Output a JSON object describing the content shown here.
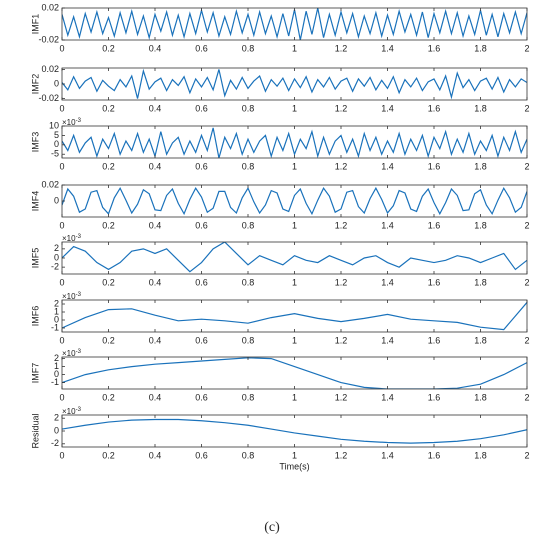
{
  "chart_data": [
    {
      "type": "line",
      "ylabel": "IMF1",
      "color": "#1a72bb",
      "xlim": [
        0,
        2
      ],
      "ylim": [
        -0.02,
        0.02
      ],
      "xticks": [
        0,
        0.2,
        0.4,
        0.6,
        0.8,
        1,
        1.2,
        1.4,
        1.6,
        1.8,
        2
      ],
      "yticks": [
        -0.02,
        0.02
      ],
      "x": [
        0,
        0.025,
        0.05,
        0.075,
        0.1,
        0.125,
        0.15,
        0.175,
        0.2,
        0.225,
        0.25,
        0.275,
        0.3,
        0.325,
        0.35,
        0.375,
        0.4,
        0.425,
        0.45,
        0.475,
        0.5,
        0.525,
        0.55,
        0.575,
        0.6,
        0.625,
        0.65,
        0.675,
        0.7,
        0.725,
        0.75,
        0.775,
        0.8,
        0.825,
        0.85,
        0.875,
        0.9,
        0.925,
        0.95,
        0.975,
        1,
        1.025,
        1.05,
        1.075,
        1.1,
        1.125,
        1.15,
        1.175,
        1.2,
        1.225,
        1.25,
        1.275,
        1.3,
        1.325,
        1.35,
        1.375,
        1.4,
        1.425,
        1.45,
        1.475,
        1.5,
        1.525,
        1.55,
        1.575,
        1.6,
        1.625,
        1.65,
        1.675,
        1.7,
        1.725,
        1.75,
        1.775,
        1.8,
        1.825,
        1.85,
        1.875,
        1.9,
        1.925,
        1.95,
        1.975,
        2
      ],
      "values": [
        0.012,
        -0.014,
        0.009,
        -0.016,
        0.013,
        -0.01,
        0.015,
        -0.012,
        0.008,
        -0.015,
        0.014,
        -0.011,
        0.016,
        -0.013,
        0.01,
        -0.017,
        0.012,
        -0.009,
        0.015,
        -0.014,
        0.011,
        -0.016,
        0.013,
        -0.012,
        0.017,
        -0.01,
        0.014,
        -0.015,
        0.009,
        -0.013,
        0.016,
        -0.011,
        0.012,
        -0.014,
        0.015,
        -0.012,
        0.01,
        -0.016,
        0.013,
        -0.015,
        0.018,
        -0.02,
        0.016,
        -0.013,
        0.02,
        -0.017,
        0.012,
        -0.014,
        0.015,
        -0.011,
        0.013,
        -0.016,
        0.01,
        -0.012,
        0.014,
        -0.015,
        0.011,
        -0.013,
        0.016,
        -0.01,
        0.012,
        -0.014,
        0.015,
        -0.017,
        0.013,
        -0.011,
        0.016,
        -0.012,
        0.014,
        -0.015,
        0.01,
        -0.013,
        0.017,
        -0.014,
        0.012,
        -0.016,
        0.013,
        -0.011,
        0.015,
        -0.012,
        0.014
      ]
    },
    {
      "type": "line",
      "ylabel": "IMF2",
      "color": "#1a72bb",
      "xlim": [
        0,
        2
      ],
      "ylim": [
        -0.022,
        0.022
      ],
      "xticks": [
        0,
        0.2,
        0.4,
        0.6,
        0.8,
        1,
        1.2,
        1.4,
        1.6,
        1.8,
        2
      ],
      "yticks": [
        -0.02,
        0,
        0.02
      ],
      "x": [
        0,
        0.025,
        0.05,
        0.075,
        0.1,
        0.125,
        0.15,
        0.175,
        0.2,
        0.225,
        0.25,
        0.275,
        0.3,
        0.325,
        0.35,
        0.375,
        0.4,
        0.425,
        0.45,
        0.475,
        0.5,
        0.525,
        0.55,
        0.575,
        0.6,
        0.625,
        0.65,
        0.675,
        0.7,
        0.725,
        0.75,
        0.775,
        0.8,
        0.825,
        0.85,
        0.875,
        0.9,
        0.925,
        0.95,
        0.975,
        1,
        1.025,
        1.05,
        1.075,
        1.1,
        1.125,
        1.15,
        1.175,
        1.2,
        1.225,
        1.25,
        1.275,
        1.3,
        1.325,
        1.35,
        1.375,
        1.4,
        1.425,
        1.45,
        1.475,
        1.5,
        1.525,
        1.55,
        1.575,
        1.6,
        1.625,
        1.65,
        1.675,
        1.7,
        1.725,
        1.75,
        1.775,
        1.8,
        1.825,
        1.85,
        1.875,
        1.9,
        1.925,
        1.95,
        1.975,
        2
      ],
      "values": [
        0.002,
        -0.008,
        0.01,
        -0.006,
        0.004,
        0.009,
        -0.01,
        0.005,
        -0.003,
        -0.009,
        0.006,
        -0.004,
        0.011,
        -0.02,
        0.018,
        -0.007,
        0.003,
        0.008,
        -0.009,
        0.006,
        -0.002,
        0.01,
        -0.012,
        0.007,
        -0.004,
        0.009,
        -0.008,
        0.02,
        -0.016,
        0.005,
        -0.007,
        0.009,
        -0.006,
        0.004,
        0.011,
        -0.01,
        0.006,
        -0.003,
        0.008,
        -0.009,
        0.007,
        -0.005,
        0.01,
        -0.011,
        0.006,
        -0.004,
        0.009,
        -0.007,
        0.004,
        0.008,
        -0.01,
        0.007,
        -0.003,
        0.009,
        -0.008,
        0.005,
        -0.006,
        0.01,
        -0.012,
        0.006,
        -0.004,
        0.008,
        -0.009,
        0.003,
        0.007,
        -0.008,
        0.011,
        -0.018,
        0.015,
        -0.005,
        0.006,
        -0.009,
        0.004,
        0.008,
        -0.007,
        0.009,
        -0.011,
        0.006,
        -0.004,
        0.007,
        0.002
      ]
    },
    {
      "type": "line",
      "ylabel": "IMF3",
      "multiplier": "×10",
      "exponent": "-3",
      "color": "#1a72bb",
      "xlim": [
        0,
        2
      ],
      "ylim": [
        -7,
        10
      ],
      "xticks": [
        0,
        0.2,
        0.4,
        0.6,
        0.8,
        1,
        1.2,
        1.4,
        1.6,
        1.8,
        2
      ],
      "yticks": [
        -5,
        0,
        5,
        10
      ],
      "x": [
        0,
        0.025,
        0.05,
        0.075,
        0.1,
        0.125,
        0.15,
        0.175,
        0.2,
        0.225,
        0.25,
        0.275,
        0.3,
        0.325,
        0.35,
        0.375,
        0.4,
        0.425,
        0.45,
        0.475,
        0.5,
        0.525,
        0.55,
        0.575,
        0.6,
        0.625,
        0.65,
        0.675,
        0.7,
        0.725,
        0.75,
        0.775,
        0.8,
        0.825,
        0.85,
        0.875,
        0.9,
        0.925,
        0.95,
        0.975,
        1,
        1.025,
        1.05,
        1.075,
        1.1,
        1.125,
        1.15,
        1.175,
        1.2,
        1.225,
        1.25,
        1.275,
        1.3,
        1.325,
        1.35,
        1.375,
        1.4,
        1.425,
        1.45,
        1.475,
        1.5,
        1.525,
        1.55,
        1.575,
        1.6,
        1.625,
        1.65,
        1.675,
        1.7,
        1.725,
        1.75,
        1.775,
        1.8,
        1.825,
        1.85,
        1.875,
        1.9,
        1.925,
        1.95,
        1.975,
        2
      ],
      "values": [
        2,
        -3,
        5,
        -4,
        1,
        4,
        -6,
        3,
        -2,
        6,
        -5,
        2,
        -3,
        6,
        -4,
        3,
        -6,
        7,
        -5,
        1,
        4,
        -5,
        2,
        -4,
        5,
        -3,
        9,
        -7,
        4,
        -2,
        6,
        -5,
        3,
        -4,
        2,
        5,
        -6,
        4,
        -3,
        6,
        -5,
        3,
        -2,
        7,
        -6,
        4,
        -5,
        2,
        5,
        -4,
        3,
        -6,
        6,
        -3,
        4,
        -5,
        2,
        -4,
        6,
        -5,
        3,
        -3,
        5,
        -6,
        4,
        -2,
        7,
        -5,
        3,
        -4,
        6,
        -5,
        2,
        -3,
        5,
        -6,
        4,
        -3,
        7,
        -4,
        3
      ]
    },
    {
      "type": "line",
      "ylabel": "IMF4",
      "color": "#1a72bb",
      "xlim": [
        0,
        2
      ],
      "ylim": [
        -0.02,
        0.02
      ],
      "xticks": [
        0,
        0.2,
        0.4,
        0.6,
        0.8,
        1,
        1.2,
        1.4,
        1.6,
        1.8,
        2
      ],
      "yticks": [
        0,
        0.02
      ],
      "x": [
        0,
        0.025,
        0.05,
        0.075,
        0.1,
        0.125,
        0.15,
        0.175,
        0.2,
        0.225,
        0.25,
        0.275,
        0.3,
        0.325,
        0.35,
        0.375,
        0.4,
        0.425,
        0.45,
        0.475,
        0.5,
        0.525,
        0.55,
        0.575,
        0.6,
        0.625,
        0.65,
        0.675,
        0.7,
        0.725,
        0.75,
        0.775,
        0.8,
        0.825,
        0.85,
        0.875,
        0.9,
        0.925,
        0.95,
        0.975,
        1,
        1.025,
        1.05,
        1.075,
        1.1,
        1.125,
        1.15,
        1.175,
        1.2,
        1.225,
        1.25,
        1.275,
        1.3,
        1.325,
        1.35,
        1.375,
        1.4,
        1.425,
        1.45,
        1.475,
        1.5,
        1.525,
        1.55,
        1.575,
        1.6,
        1.625,
        1.65,
        1.675,
        1.7,
        1.725,
        1.75,
        1.775,
        1.8,
        1.825,
        1.85,
        1.875,
        1.9,
        1.925,
        1.95,
        1.975,
        2
      ],
      "values": [
        -0.005,
        0.015,
        0.006,
        -0.014,
        -0.01,
        0.011,
        0.013,
        -0.008,
        -0.016,
        0.004,
        0.016,
        0.001,
        -0.015,
        -0.004,
        0.014,
        0.009,
        -0.011,
        -0.012,
        0.007,
        0.015,
        -0.003,
        -0.016,
        0.002,
        0.016,
        0.005,
        -0.014,
        -0.009,
        0.012,
        0.012,
        -0.008,
        -0.015,
        0.004,
        0.016,
        -0.001,
        -0.015,
        -0.005,
        0.013,
        0.01,
        -0.01,
        -0.013,
        0.007,
        0.015,
        -0.003,
        -0.016,
        0.001,
        0.016,
        0.006,
        -0.014,
        -0.01,
        0.011,
        0.013,
        -0.007,
        -0.015,
        0.003,
        0.016,
        0.002,
        -0.015,
        -0.006,
        0.013,
        0.01,
        -0.01,
        -0.013,
        0.006,
        0.015,
        -0.002,
        -0.016,
        -0.002,
        0.015,
        0.007,
        -0.012,
        -0.011,
        0.009,
        0.014,
        -0.005,
        -0.016,
        0.001,
        0.016,
        0.004,
        -0.014,
        -0.008,
        0.012
      ]
    },
    {
      "type": "line",
      "ylabel": "IMF5",
      "multiplier": "×10",
      "exponent": "-3",
      "color": "#1a72bb",
      "xlim": [
        0,
        2
      ],
      "ylim": [
        -3.5,
        3.5
      ],
      "xticks": [
        0,
        0.2,
        0.4,
        0.6,
        0.8,
        1,
        1.2,
        1.4,
        1.6,
        1.8,
        2
      ],
      "yticks": [
        -2,
        0,
        2
      ],
      "x": [
        0,
        0.05,
        0.1,
        0.15,
        0.2,
        0.25,
        0.3,
        0.35,
        0.4,
        0.45,
        0.5,
        0.55,
        0.6,
        0.65,
        0.7,
        0.75,
        0.8,
        0.85,
        0.9,
        0.95,
        1,
        1.05,
        1.1,
        1.15,
        1.2,
        1.25,
        1.3,
        1.35,
        1.4,
        1.45,
        1.5,
        1.55,
        1.6,
        1.65,
        1.7,
        1.75,
        1.8,
        1.85,
        1.9,
        1.95,
        2
      ],
      "values": [
        0,
        2.5,
        1.5,
        -1,
        -2.5,
        -1,
        1.5,
        2,
        1,
        2,
        -0.5,
        -3,
        -1,
        2,
        3.5,
        1,
        -1.5,
        0.5,
        -0.5,
        -1.5,
        0.5,
        -0.5,
        -1,
        0.5,
        -0.5,
        -1.5,
        0,
        0.5,
        -1,
        -2,
        0,
        -0.5,
        -1,
        -0.5,
        0.5,
        0,
        -1,
        0,
        1,
        -2.5,
        -0.5
      ]
    },
    {
      "type": "line",
      "ylabel": "IMF6",
      "multiplier": "×10",
      "exponent": "-3",
      "color": "#1a72bb",
      "xlim": [
        0,
        2
      ],
      "ylim": [
        -1.5,
        2.5
      ],
      "xticks": [
        0,
        0.2,
        0.4,
        0.6,
        0.8,
        1,
        1.2,
        1.4,
        1.6,
        1.8,
        2
      ],
      "yticks": [
        -1,
        0,
        1,
        2
      ],
      "x": [
        0,
        0.1,
        0.2,
        0.3,
        0.4,
        0.5,
        0.6,
        0.7,
        0.8,
        0.9,
        1,
        1.1,
        1.2,
        1.3,
        1.4,
        1.5,
        1.6,
        1.7,
        1.8,
        1.9,
        2
      ],
      "values": [
        -1,
        0.3,
        1.3,
        1.4,
        0.6,
        -0.1,
        0.1,
        -0.1,
        -0.4,
        0.3,
        0.8,
        0.2,
        -0.2,
        0.2,
        0.7,
        0.1,
        -0.1,
        -0.3,
        -0.9,
        -1.2,
        2.2
      ]
    },
    {
      "type": "line",
      "ylabel": "IMF7",
      "multiplier": "×10",
      "exponent": "-3",
      "color": "#1a72bb",
      "xlim": [
        0,
        2
      ],
      "ylim": [
        -1.8,
        2.2
      ],
      "xticks": [
        0,
        0.2,
        0.4,
        0.6,
        0.8,
        1,
        1.2,
        1.4,
        1.6,
        1.8,
        2
      ],
      "yticks": [
        -1,
        0,
        1,
        2
      ],
      "x": [
        0,
        0.1,
        0.2,
        0.3,
        0.4,
        0.5,
        0.6,
        0.7,
        0.8,
        0.9,
        1,
        1.1,
        1.2,
        1.3,
        1.4,
        1.5,
        1.6,
        1.7,
        1.8,
        1.9,
        2
      ],
      "values": [
        -1,
        0,
        0.6,
        1,
        1.3,
        1.5,
        1.7,
        1.9,
        2.1,
        2,
        1,
        0,
        -1,
        -1.6,
        -1.8,
        -1.8,
        -1.8,
        -1.7,
        -1.2,
        0,
        1.5
      ]
    },
    {
      "type": "line",
      "ylabel": "Residual",
      "xlabel": "Time(s)",
      "multiplier": "×10",
      "exponent": "-3",
      "color": "#1a72bb",
      "xlim": [
        0,
        2
      ],
      "ylim": [
        -2.5,
        2.5
      ],
      "xticks": [
        0,
        0.2,
        0.4,
        0.6,
        0.8,
        1,
        1.2,
        1.4,
        1.6,
        1.8,
        2
      ],
      "yticks": [
        -2,
        0,
        2
      ],
      "x": [
        0,
        0.1,
        0.2,
        0.3,
        0.4,
        0.5,
        0.6,
        0.7,
        0.8,
        0.9,
        1,
        1.1,
        1.2,
        1.3,
        1.4,
        1.5,
        1.6,
        1.7,
        1.8,
        1.9,
        2
      ],
      "values": [
        0.3,
        0.9,
        1.4,
        1.7,
        1.8,
        1.8,
        1.6,
        1.3,
        0.9,
        0.3,
        -0.3,
        -0.8,
        -1.3,
        -1.6,
        -1.8,
        -1.9,
        -1.8,
        -1.6,
        -1.2,
        -0.6,
        0.2
      ]
    }
  ],
  "caption": "(c)"
}
